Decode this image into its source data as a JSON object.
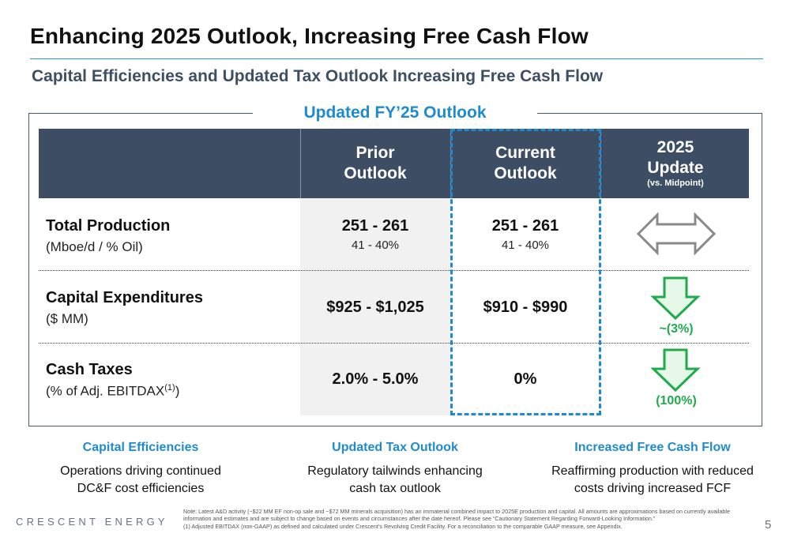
{
  "title": "Enhancing 2025 Outlook, Increasing Free Cash Flow",
  "subtitle": "Capital Efficiencies and Updated Tax Outlook Increasing Free Cash Flow",
  "panel_title": "Updated FY’25 Outlook",
  "header": {
    "prior": "Prior\nOutlook",
    "current": "Current\nOutlook",
    "update": "2025\nUpdate",
    "update_sub": "(vs. Midpoint)"
  },
  "rows": [
    {
      "label": "Total Production",
      "sublabel": "(Mboe/d / % Oil)",
      "prior": "251 - 261",
      "prior_sub": "41 - 40%",
      "current": "251 - 261",
      "current_sub": "41 - 40%",
      "update_icon": "double-arrow-icon",
      "update_text": ""
    },
    {
      "label": "Capital Expenditures",
      "sublabel": "($ MM)",
      "prior": "$925 - $1,025",
      "prior_sub": "",
      "current": "$910 - $990",
      "current_sub": "",
      "update_icon": "down-arrow-icon",
      "update_text": "~(3%)"
    },
    {
      "label": "Cash Taxes",
      "sublabel": "(% of Adj. EBITDAX",
      "sublabel_sup": "(1)",
      "sublabel_end": ")",
      "prior": "2.0% - 5.0%",
      "prior_sub": "",
      "current": "0%",
      "current_sub": "",
      "update_icon": "down-arrow-icon",
      "update_text": "(100%)"
    }
  ],
  "footer_columns": [
    {
      "title": "Capital Efficiencies",
      "text": "Operations driving continued\nDC&F cost efficiencies"
    },
    {
      "title": "Updated Tax Outlook",
      "text": "Regulatory tailwinds enhancing\ncash tax outlook"
    },
    {
      "title": "Increased Free Cash Flow",
      "text": "Reaffirming production with reduced\ncosts driving increased FCF"
    }
  ],
  "brand": "CRESCENT ENERGY",
  "note_line1": "Note: Latest A&D activity (~$22 MM EF non-op sale and ~$72 MM minerals acquisition) has an immaterial combined impact to 2025E production and capital. All amounts are approximations based on currently available information and estimates and are subject to change based on events and circumstances after the date hereof. Please see “Cautionary Statement Regarding Forward-Looking Information.”",
  "note_line2": "(1)      Adjusted EBITDAX (non-GAAP) as defined and calculated under Crescent’s Revolving Credit Facility. For a reconciliation to the comparable GAAP measure, see Appendix.",
  "page_number": "5",
  "colors": {
    "accent_blue": "#1e8bd0",
    "header_navy": "#3d4e64",
    "subtitle_slate": "#3f4f63",
    "positive_green": "#1faa4b",
    "arrow_fill_green": "#e6f9e9",
    "neutral_gray": "#8a8a8a"
  }
}
